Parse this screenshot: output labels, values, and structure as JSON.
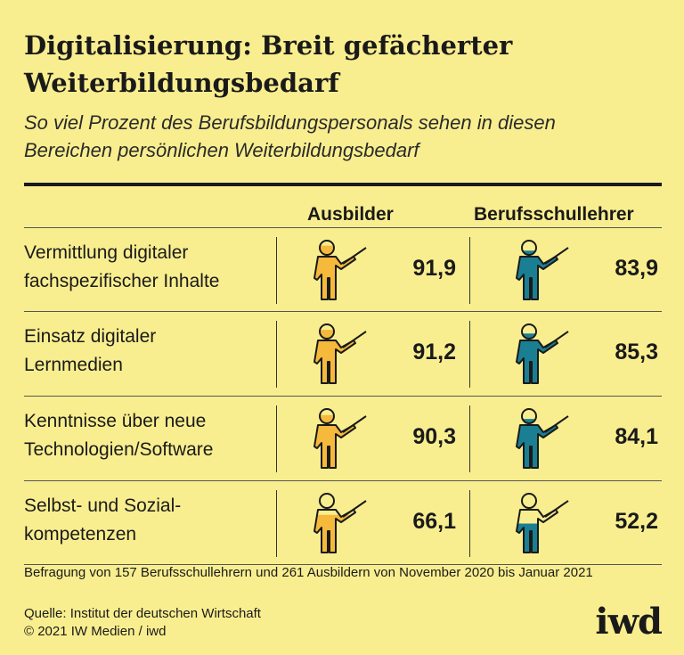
{
  "title_line1": "Digitalisierung: Breit gefächerter",
  "title_line2": "Weiterbildungsbedarf",
  "subtitle_line1": "So viel Prozent des Berufsbildungspersonals sehen in diesen",
  "subtitle_line2": "Bereichen persönlichen Weiterbildungsbedarf",
  "colors": {
    "ausbilder": "#f5b93b",
    "lehrer": "#1a7f93",
    "background": "#f9ee8f"
  },
  "chart_data": {
    "type": "table",
    "title": "Digitalisierung: Breit gefächerter Weiterbildungsbedarf",
    "unit": "Prozent",
    "series": [
      {
        "name": "Ausbilder",
        "values": [
          91.9,
          91.2,
          90.3,
          66.1
        ],
        "labels": [
          "91,9",
          "91,2",
          "90,3",
          "66,1"
        ]
      },
      {
        "name": "Berufsschullehrer",
        "values": [
          83.9,
          85.3,
          84.1,
          52.2
        ],
        "labels": [
          "83,9",
          "85,3",
          "84,1",
          "52,2"
        ]
      }
    ],
    "categories": [
      {
        "line1": "Vermittlung digitaler",
        "line2": "fachspezifischer Inhalte"
      },
      {
        "line1": "Einsatz digitaler",
        "line2": "Lernmedien"
      },
      {
        "line1": "Kenntnisse über neue",
        "line2": "Technologien/Software"
      },
      {
        "line1": "Selbst- und Sozial-",
        "line2": "kompetenzen"
      }
    ]
  },
  "footnote": "Befragung von 157 Berufsschullehrern und 261 Ausbildern von November 2020 bis Januar 2021",
  "source_line1": "Quelle: Institut der deutschen Wirtschaft",
  "source_line2": "© 2021 IW Medien / iwd",
  "logo_text": "iwd"
}
